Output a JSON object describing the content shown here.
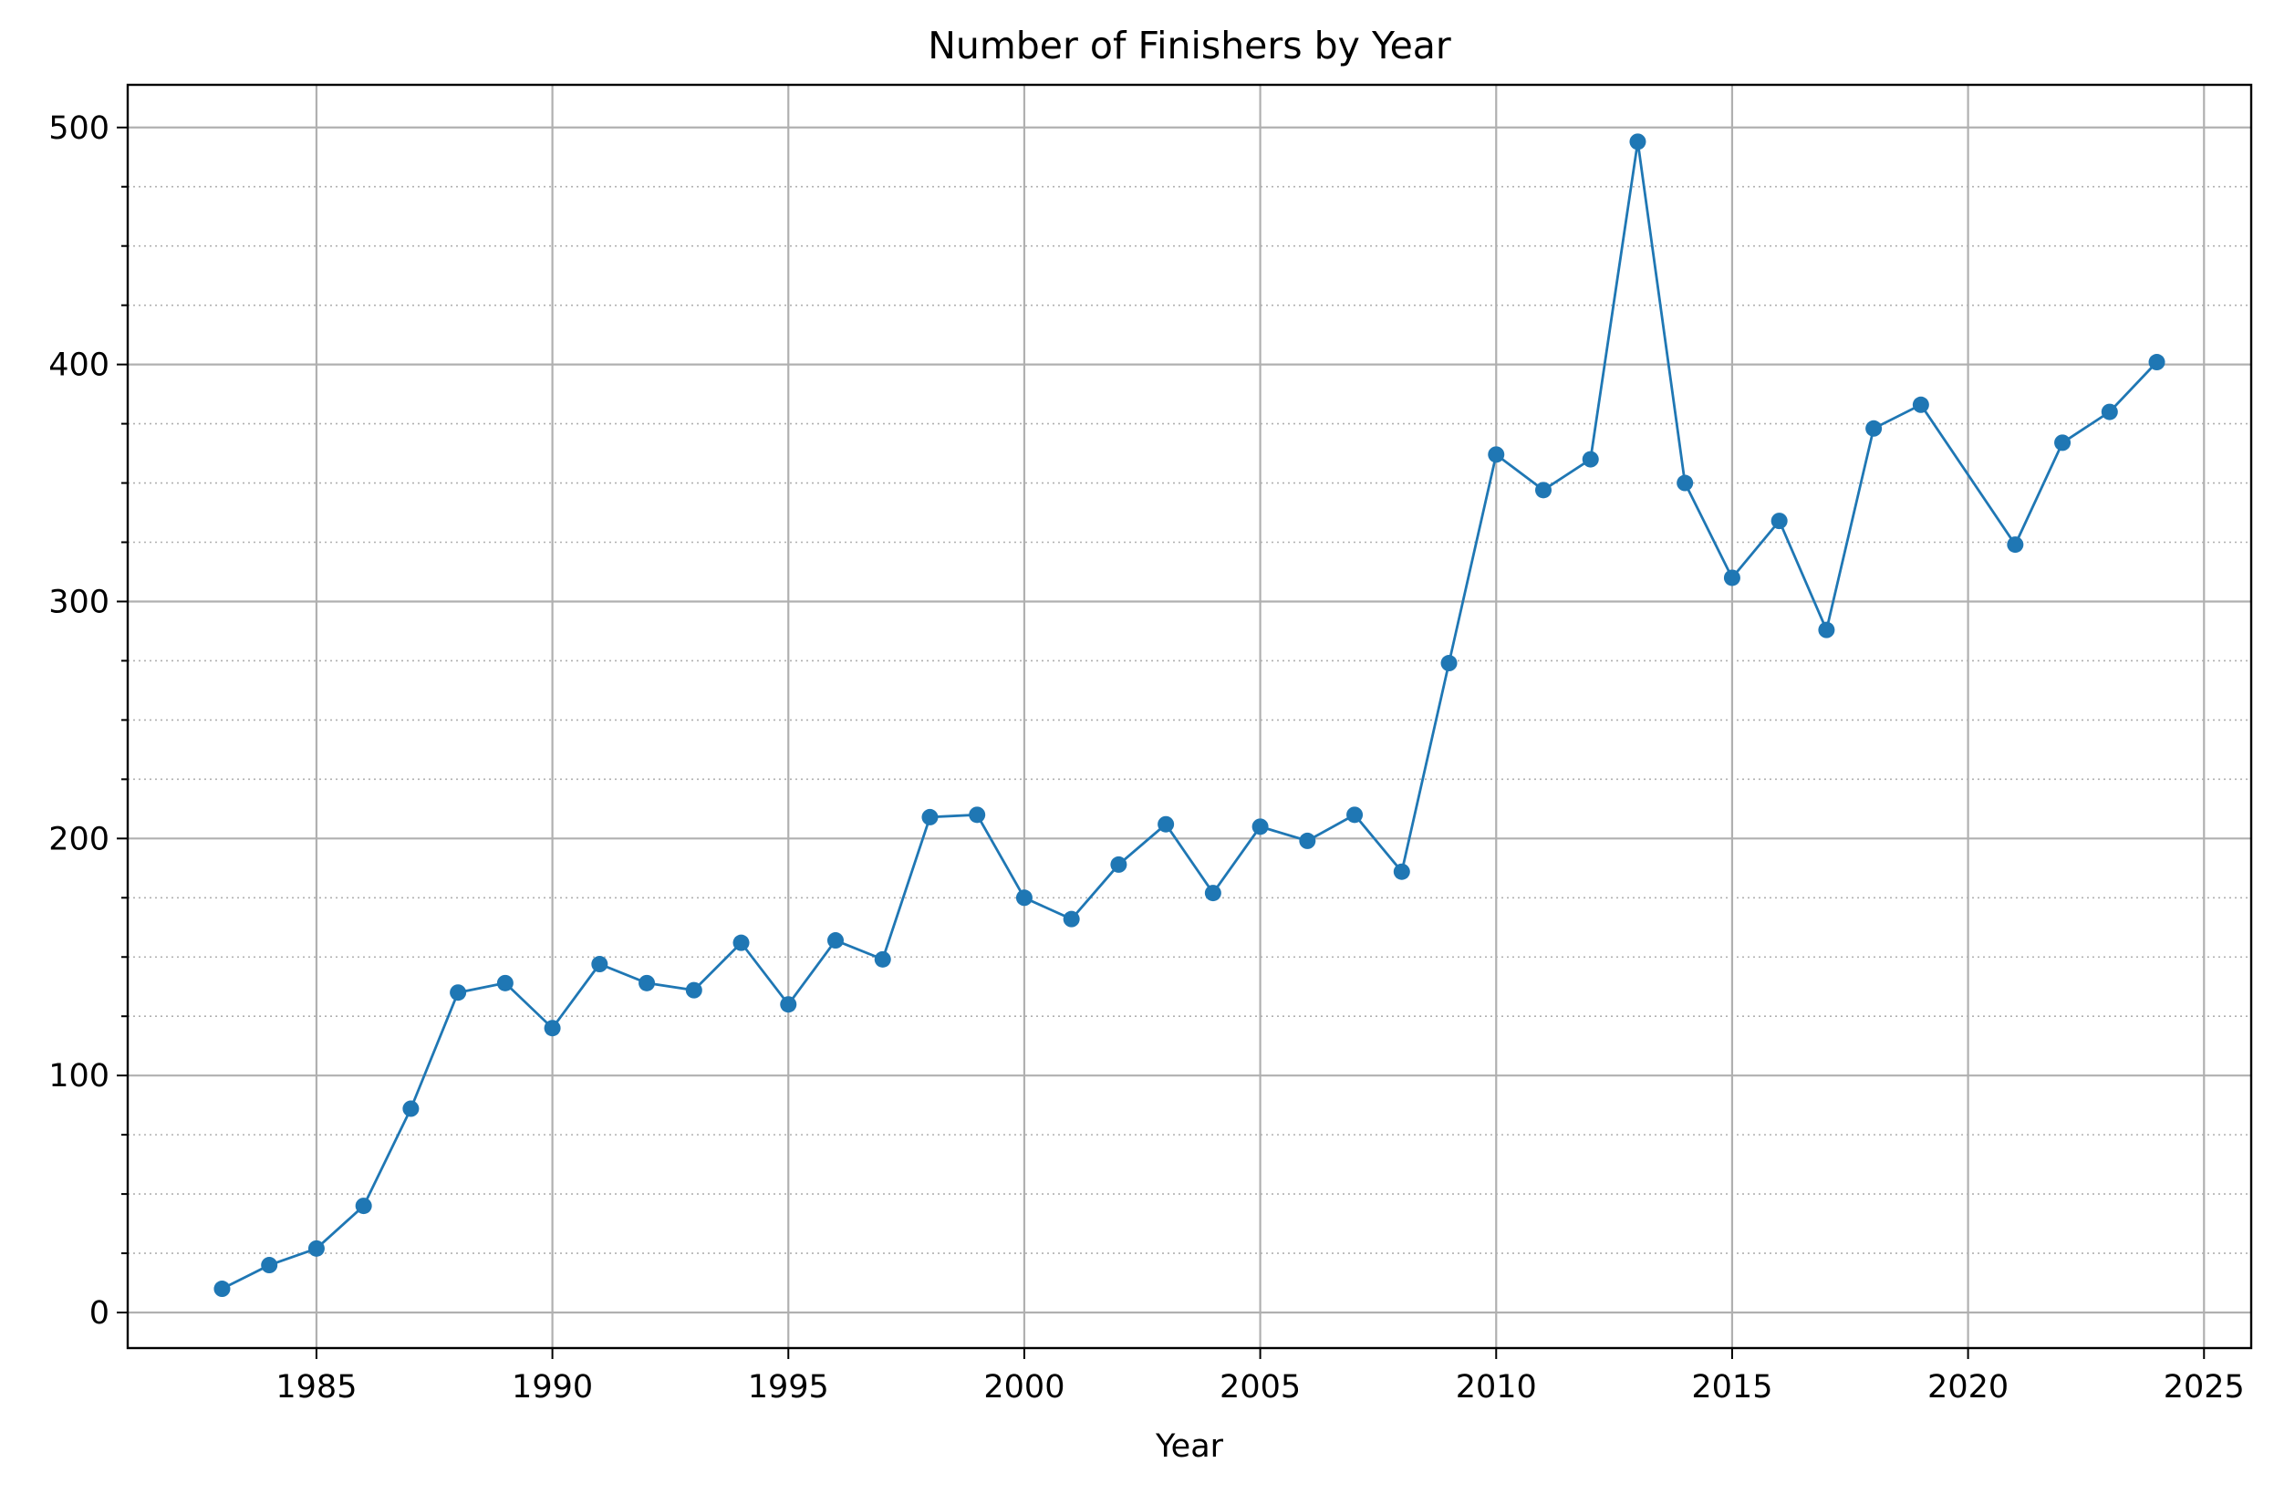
{
  "chart_data": {
    "type": "line",
    "title": "Number of Finishers by Year",
    "xlabel": "Year",
    "ylabel": "",
    "xlim": [
      1981,
      2026
    ],
    "ylim": [
      -15,
      518
    ],
    "xticks": [
      1985,
      1990,
      1995,
      2000,
      2005,
      2010,
      2015,
      2020,
      2025
    ],
    "yticks": [
      0,
      100,
      200,
      300,
      400,
      500
    ],
    "yminor_step": 25,
    "grid": "major solid, minor dotted on y",
    "color": "#1f77b4",
    "x": [
      1983,
      1984,
      1985,
      1986,
      1987,
      1988,
      1989,
      1990,
      1991,
      1992,
      1993,
      1994,
      1995,
      1996,
      1997,
      1998,
      1999,
      2000,
      2001,
      2002,
      2003,
      2004,
      2005,
      2006,
      2007,
      2008,
      2009,
      2010,
      2011,
      2012,
      2013,
      2014,
      2015,
      2016,
      2017,
      2018,
      2019,
      2021,
      2022,
      2023,
      2024
    ],
    "values": [
      10,
      20,
      27,
      45,
      86,
      135,
      139,
      120,
      147,
      139,
      136,
      156,
      130,
      157,
      149,
      209,
      210,
      175,
      166,
      189,
      206,
      177,
      205,
      199,
      210,
      186,
      274,
      362,
      347,
      360,
      494,
      350,
      310,
      334,
      288,
      373,
      383,
      324,
      367,
      380,
      401
    ]
  }
}
